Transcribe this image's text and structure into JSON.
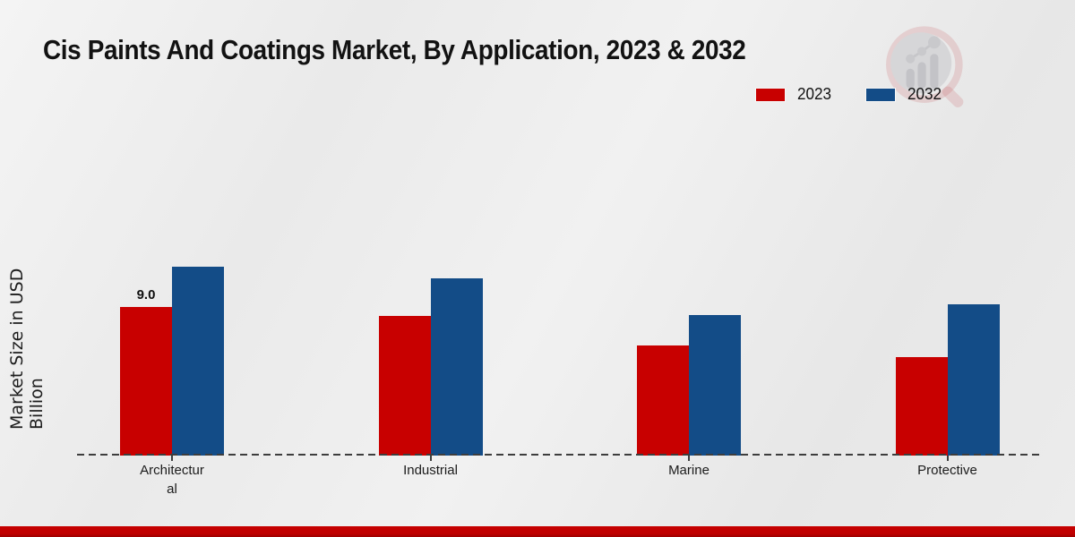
{
  "title": "Cis Paints And Coatings Market, By Application, 2023 & 2032",
  "legend": [
    {
      "label": "2023",
      "color": "#c80000"
    },
    {
      "label": "2032",
      "color": "#134c87"
    }
  ],
  "colors": {
    "series_2023": "#c80000",
    "series_2032": "#134c87",
    "footer_bar": "#bf0000",
    "axis_dash": "#3d3d3d",
    "background": "#ededed"
  },
  "watermark_icon": "magnifier-bar-chart-logo",
  "chart_data": {
    "type": "bar",
    "title": "Cis Paints And Coatings Market, By Application, 2023 & 2032",
    "ylabel": "Market Size in USD Billion",
    "xlabel": "",
    "categories": [
      "Architectural",
      "Industrial",
      "Marine",
      "Protective"
    ],
    "categories_display": [
      "Architectur\nal",
      "Industrial",
      "Marine",
      "Protective"
    ],
    "series": [
      {
        "name": "2023",
        "color": "#c80000",
        "values": [
          9.0,
          8.45,
          6.65,
          5.95
        ]
      },
      {
        "name": "2032",
        "color": "#134c87",
        "values": [
          11.45,
          10.75,
          8.5,
          9.15
        ]
      }
    ],
    "ylim": [
      0,
      12.5
    ],
    "grid": false,
    "y_axis_visible": false,
    "baseline_style": "dashed",
    "legend_position": "top-right",
    "data_labels": [
      {
        "series": "2023",
        "category": "Architectural",
        "value": "9.0"
      }
    ]
  }
}
